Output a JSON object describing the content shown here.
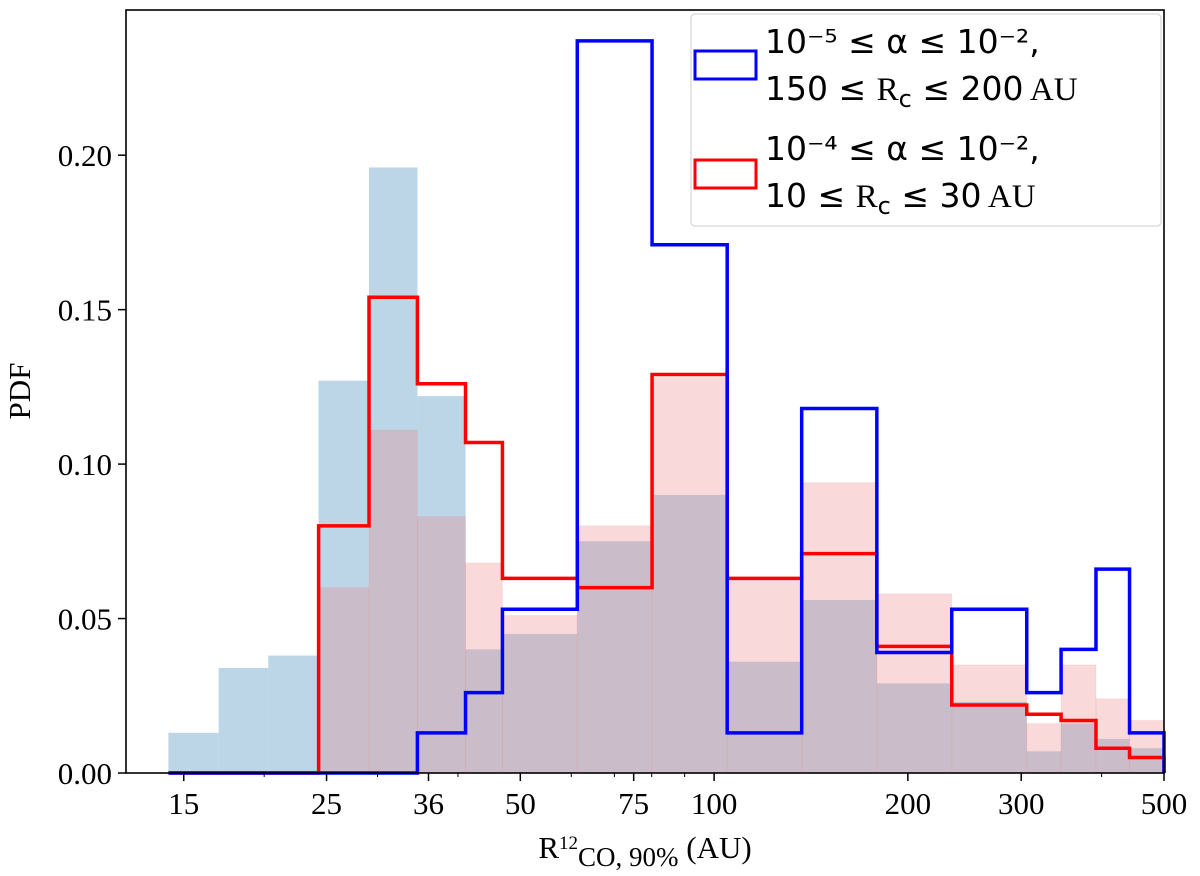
{
  "chart_data": {
    "type": "bar",
    "subtype": "histogram",
    "xscale": "log",
    "xlim": [
      12.2,
      500
    ],
    "ylim": [
      0,
      0.247
    ],
    "grid": false,
    "legend_placement": "top-right",
    "xlabel": {
      "main": "R",
      "sup": "12",
      "sub": "CO, 90%",
      "unit": " (AU)"
    },
    "ylabel": "PDF",
    "xticks": [
      15,
      25,
      36,
      50,
      75,
      100,
      200,
      300,
      500
    ],
    "xtick_labels": [
      "15",
      "25",
      "36",
      "50",
      "75",
      "100",
      "200",
      "300",
      "500"
    ],
    "yticks": [
      0,
      0.05,
      0.1,
      0.15,
      0.2
    ],
    "ytick_labels": [
      "0.00",
      "0.05",
      "0.10",
      "0.15",
      "0.20"
    ],
    "bin_edges": [
      14.2,
      17.0,
      20.3,
      24.3,
      29.1,
      34.6,
      41.1,
      46.9,
      61.3,
      80.1,
      104.8,
      136.8,
      179,
      234,
      306,
      346,
      392,
      442,
      500
    ],
    "series": [
      {
        "style": "filled",
        "color": "#bcd6e8",
        "values": [
          0.013,
          0.034,
          0.038,
          0.127,
          0.196,
          0.122,
          0.04,
          0.045,
          0.075,
          0.09,
          0.036,
          0.056,
          0.029,
          0.023,
          0.007,
          0.016,
          0.011,
          0.008
        ]
      },
      {
        "style": "filled",
        "color": "#ec8585",
        "values": [
          0,
          0,
          0,
          0.06,
          0.111,
          0.083,
          0.068,
          0.051,
          0.08,
          0.128,
          0.063,
          0.094,
          0.058,
          0.035,
          0.016,
          0.035,
          0.024,
          0.017
        ]
      },
      {
        "style": "step",
        "color": "#0000ff",
        "name": "10⁻⁵ ≤ α ≤ 10⁻², 150 ≤ Rc ≤ 200 AU",
        "values": [
          0,
          0,
          0,
          0,
          0,
          0.013,
          0.026,
          0.053,
          0.237,
          0.171,
          0.013,
          0.118,
          0.039,
          0.053,
          0.026,
          0.04,
          0.066,
          0.013
        ]
      },
      {
        "style": "step",
        "color": "#ff0000",
        "name": "10⁻⁴ ≤ α ≤ 10⁻², 10 ≤ Rc ≤ 30 AU",
        "values": [
          0,
          0,
          0,
          0.08,
          0.154,
          0.126,
          0.107,
          0.063,
          0.06,
          0.129,
          0.063,
          0.071,
          0.041,
          0.022,
          0.019,
          0.017,
          0.008,
          0.005
        ]
      }
    ],
    "legend": [
      {
        "color": "#0000ff",
        "line1": "10⁻⁵ ≤ α ≤ 10⁻²,",
        "line2_pre": "150 ≤ ",
        "line2_r": "R",
        "line2_sub": "c",
        "line2_post": " ≤ 200",
        "line2_unit": " AU"
      },
      {
        "color": "#ff0000",
        "line1": "10⁻⁴ ≤ α ≤ 10⁻²,",
        "line2_pre": "10 ≤ ",
        "line2_r": "R",
        "line2_sub": "c",
        "line2_post": " ≤ 30",
        "line2_unit": " AU"
      }
    ]
  }
}
